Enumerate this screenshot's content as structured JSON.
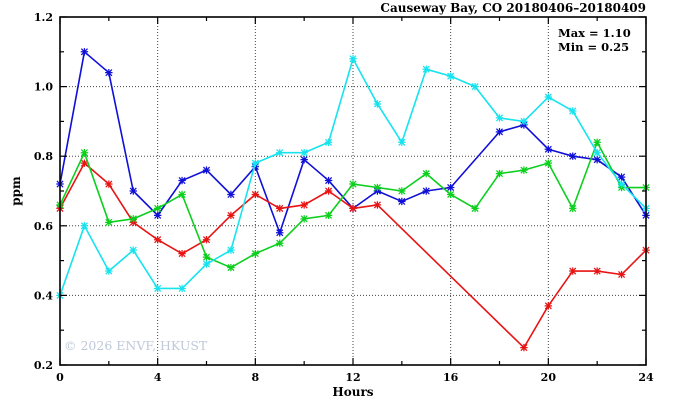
{
  "title": "Causeway Bay, CO 20180406–20180409",
  "annotation": {
    "max_label": "Max = 1.10",
    "min_label": "Min = 0.25"
  },
  "watermark": "© 2026 ENVF, HKUST",
  "chart_data": {
    "type": "line",
    "title": "Causeway Bay, CO 20180406–20180409",
    "xlabel": "Hours",
    "ylabel": "ppm",
    "xlim": [
      0,
      24
    ],
    "ylim": [
      0.2,
      1.2
    ],
    "x_major_ticks": [
      0,
      4,
      8,
      12,
      16,
      20,
      24
    ],
    "x_major_labels": [
      "0",
      "4",
      "8",
      "12",
      "16",
      "20",
      "24"
    ],
    "x_minor_ticks": [
      2,
      6,
      10,
      14,
      18,
      22
    ],
    "y_major_ticks": [
      0.2,
      0.4,
      0.6,
      0.8,
      1.0,
      1.2
    ],
    "y_major_labels": [
      "0.2",
      "0.4",
      "0.6",
      "0.8",
      "1.0",
      "1.2"
    ],
    "y_minor_ticks": [
      0.3,
      0.5,
      0.7,
      0.9,
      1.1
    ],
    "grid_x": [
      4,
      8,
      12,
      16,
      20
    ],
    "grid_y": [
      0.4,
      0.6,
      0.8,
      1.0
    ],
    "grid_on": true,
    "legend_position": "none",
    "stats": {
      "max": 1.1,
      "min": 0.25
    },
    "series": [
      {
        "name": "series-1-blue",
        "color": "#0f0fd8",
        "points": [
          [
            0,
            0.72
          ],
          [
            1,
            1.1
          ],
          [
            2,
            1.04
          ],
          [
            3,
            0.7
          ],
          [
            4,
            0.63
          ],
          [
            5,
            0.73
          ],
          [
            6,
            0.76
          ],
          [
            7,
            0.69
          ],
          [
            8,
            0.77
          ],
          [
            9,
            0.58
          ],
          [
            10,
            0.79
          ],
          [
            11,
            0.73
          ],
          [
            12,
            0.65
          ],
          [
            13,
            0.7
          ],
          [
            14,
            0.67
          ],
          [
            15,
            0.7
          ],
          [
            16,
            0.71
          ],
          [
            18,
            0.87
          ],
          [
            19,
            0.89
          ],
          [
            20,
            0.82
          ],
          [
            21,
            0.8
          ],
          [
            22,
            0.79
          ],
          [
            23,
            0.74
          ],
          [
            24,
            0.63
          ]
        ]
      },
      {
        "name": "series-2-red",
        "color": "#e81414",
        "points": [
          [
            0,
            0.65
          ],
          [
            1,
            0.78
          ],
          [
            2,
            0.72
          ],
          [
            3,
            0.61
          ],
          [
            4,
            0.56
          ],
          [
            5,
            0.52
          ],
          [
            6,
            0.56
          ],
          [
            7,
            0.63
          ],
          [
            8,
            0.69
          ],
          [
            9,
            0.65
          ],
          [
            10,
            0.66
          ],
          [
            11,
            0.7
          ],
          [
            12,
            0.65
          ],
          [
            13,
            0.66
          ],
          [
            19,
            0.25
          ],
          [
            20,
            0.37
          ],
          [
            21,
            0.47
          ],
          [
            22,
            0.47
          ],
          [
            23,
            0.46
          ],
          [
            24,
            0.53
          ]
        ]
      },
      {
        "name": "series-3-green",
        "color": "#0ccf1e",
        "points": [
          [
            0,
            0.66
          ],
          [
            1,
            0.81
          ],
          [
            2,
            0.61
          ],
          [
            3,
            0.62
          ],
          [
            4,
            0.65
          ],
          [
            5,
            0.69
          ],
          [
            6,
            0.51
          ],
          [
            7,
            0.48
          ],
          [
            8,
            0.52
          ],
          [
            9,
            0.55
          ],
          [
            10,
            0.62
          ],
          [
            11,
            0.63
          ],
          [
            12,
            0.72
          ],
          [
            13,
            0.71
          ],
          [
            14,
            0.7
          ],
          [
            15,
            0.75
          ],
          [
            16,
            0.69
          ],
          [
            17,
            0.65
          ],
          [
            18,
            0.75
          ],
          [
            19,
            0.76
          ],
          [
            20,
            0.78
          ],
          [
            21,
            0.65
          ],
          [
            22,
            0.84
          ],
          [
            23,
            0.71
          ],
          [
            24,
            0.71
          ]
        ]
      },
      {
        "name": "series-4-cyan",
        "color": "#17e3ee",
        "points": [
          [
            0,
            0.4
          ],
          [
            1,
            0.6
          ],
          [
            2,
            0.47
          ],
          [
            3,
            0.53
          ],
          [
            4,
            0.42
          ],
          [
            5,
            0.42
          ],
          [
            6,
            0.49
          ],
          [
            7,
            0.53
          ],
          [
            8,
            0.78
          ],
          [
            9,
            0.81
          ],
          [
            10,
            0.81
          ],
          [
            11,
            0.84
          ],
          [
            12,
            1.08
          ],
          [
            13,
            0.95
          ],
          [
            14,
            0.84
          ],
          [
            15,
            1.05
          ],
          [
            16,
            1.03
          ],
          [
            17,
            1.0
          ],
          [
            18,
            0.91
          ],
          [
            19,
            0.9
          ],
          [
            20,
            0.97
          ],
          [
            21,
            0.93
          ],
          [
            22,
            0.81
          ],
          [
            23,
            0.72
          ],
          [
            24,
            0.65
          ]
        ]
      }
    ]
  }
}
